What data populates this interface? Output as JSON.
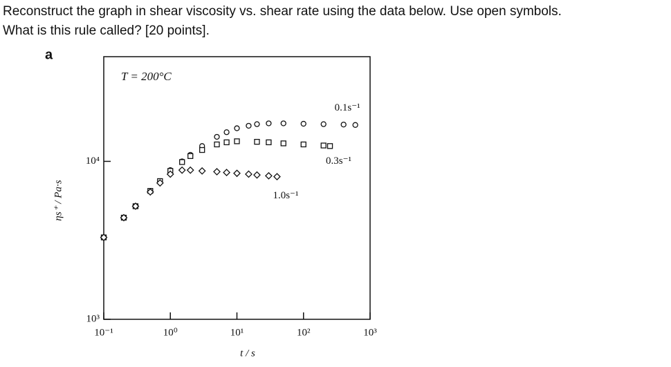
{
  "question": [
    "Reconstruct the graph in shear viscosity vs. shear rate using the data below. Use open symbols.",
    "What is this rule called? [20 points]."
  ],
  "chart_data": {
    "type": "scatter",
    "panel_label": "a",
    "title": "T = 200°C",
    "x_label": "t / s",
    "y_label": "ηs⁺ / Pa·s",
    "x_log": true,
    "y_log": true,
    "xlim": [
      0.1,
      1000
    ],
    "ylim": [
      1000,
      46000
    ],
    "xticks": [
      {
        "value": 0.1,
        "label": "10⁻¹"
      },
      {
        "value": 1,
        "label": "10⁰"
      },
      {
        "value": 10,
        "label": "10¹"
      },
      {
        "value": 100,
        "label": "10²"
      },
      {
        "value": 1000,
        "label": "10³"
      }
    ],
    "yticks": [
      {
        "value": 1000,
        "label": "10³"
      },
      {
        "value": 10000,
        "label": "10⁴"
      }
    ],
    "series": [
      {
        "name": "0.1s⁻¹",
        "color": "#111111",
        "marker": "circle",
        "x": [
          0.1,
          0.2,
          0.3,
          0.5,
          0.7,
          1,
          1.5,
          2,
          3,
          5,
          7,
          10,
          15,
          20,
          30,
          50,
          100,
          200,
          400,
          600
        ],
        "values": [
          3300,
          4400,
          5200,
          6500,
          7500,
          8800,
          10000,
          11000,
          12500,
          14300,
          15300,
          16200,
          16800,
          17200,
          17400,
          17400,
          17300,
          17200,
          17100,
          17000
        ]
      },
      {
        "name": "0.3s⁻¹",
        "color": "#111111",
        "marker": "square",
        "x": [
          0.1,
          0.2,
          0.3,
          0.5,
          0.7,
          1,
          1.5,
          2,
          3,
          5,
          7,
          10,
          20,
          30,
          50,
          100,
          200,
          250
        ],
        "values": [
          3300,
          4400,
          5200,
          6500,
          7500,
          8700,
          9900,
          10800,
          11800,
          12800,
          13200,
          13400,
          13300,
          13200,
          13000,
          12800,
          12600,
          12500
        ]
      },
      {
        "name": "1.0s⁻¹",
        "color": "#111111",
        "marker": "diamond",
        "x": [
          0.1,
          0.2,
          0.3,
          0.5,
          0.7,
          1,
          1.5,
          2,
          3,
          5,
          7,
          10,
          15,
          20,
          30,
          40
        ],
        "values": [
          3300,
          4400,
          5200,
          6400,
          7300,
          8300,
          8800,
          8800,
          8700,
          8600,
          8500,
          8400,
          8300,
          8200,
          8100,
          8000
        ]
      }
    ]
  }
}
